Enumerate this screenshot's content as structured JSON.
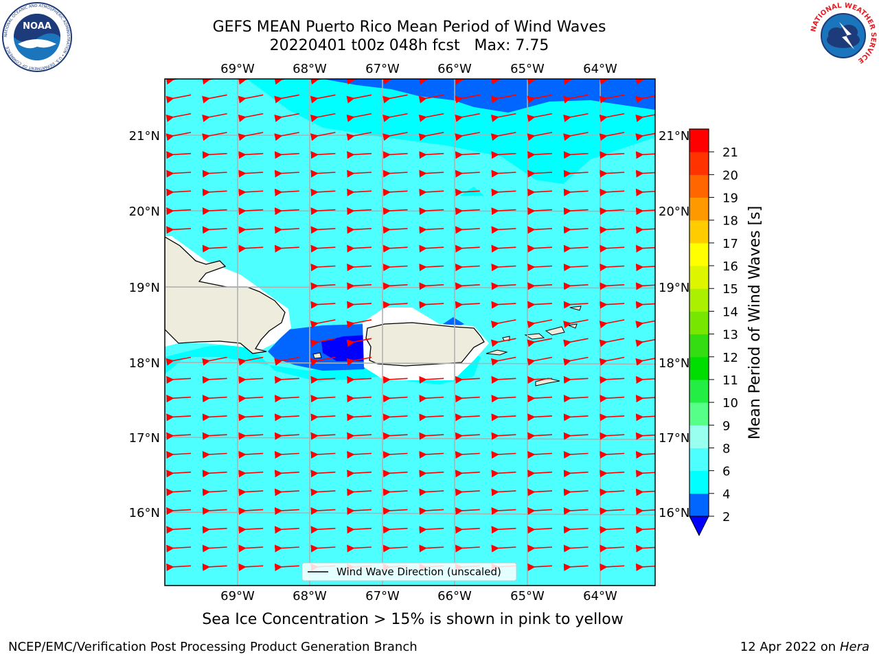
{
  "header": {
    "title_line1": "GEFS MEAN Puerto Rico Mean Period of Wind Waves",
    "title_line2": "20220401 t00z 048h fcst   Max: 7.75"
  },
  "map": {
    "lon_labels": [
      "69°W",
      "68°W",
      "67°W",
      "66°W",
      "65°W",
      "64°W"
    ],
    "lat_labels": [
      "21°N",
      "20°N",
      "19°N",
      "18°N",
      "17°N",
      "16°N"
    ],
    "legend_label": "Wind Wave Direction (unscaled)",
    "arrow_color": "#ff0000",
    "ocean_color": "#33ffff",
    "land_color": "#eeecdc"
  },
  "colorbar": {
    "label": "Mean Period of Wind Waves [s]",
    "ticks": [
      "2",
      "4",
      "6",
      "8",
      "9",
      "10",
      "11",
      "12",
      "13",
      "14",
      "15",
      "16",
      "17",
      "18",
      "19",
      "20",
      "21"
    ],
    "colors": [
      "#0066ff",
      "#00ffff",
      "#4dffff",
      "#99ffee",
      "#55ff88",
      "#22ee44",
      "#00dd00",
      "#33dd11",
      "#77e600",
      "#aaf000",
      "#ddf600",
      "#ffff00",
      "#ffcc00",
      "#ff9900",
      "#ff6600",
      "#ff3300",
      "#ff0000"
    ],
    "under_color": "#0000ff"
  },
  "caption": "Sea Ice Concentration > 15% is shown in pink to yellow",
  "footer": {
    "left": "NCEP/EMC/Verification Post Processing Product Generation Branch",
    "right_date": "12 Apr 2022 on",
    "right_host": "Hera"
  },
  "logos": {
    "noaa_text": "NOAA",
    "noaa_ring_text": "NATIONAL OCEANIC AND ATMOSPHERIC ADMINISTRATION • U.S. DEPARTMENT OF COMMERCE",
    "nws_ring_text": "NATIONAL WEATHER SERVICE"
  }
}
